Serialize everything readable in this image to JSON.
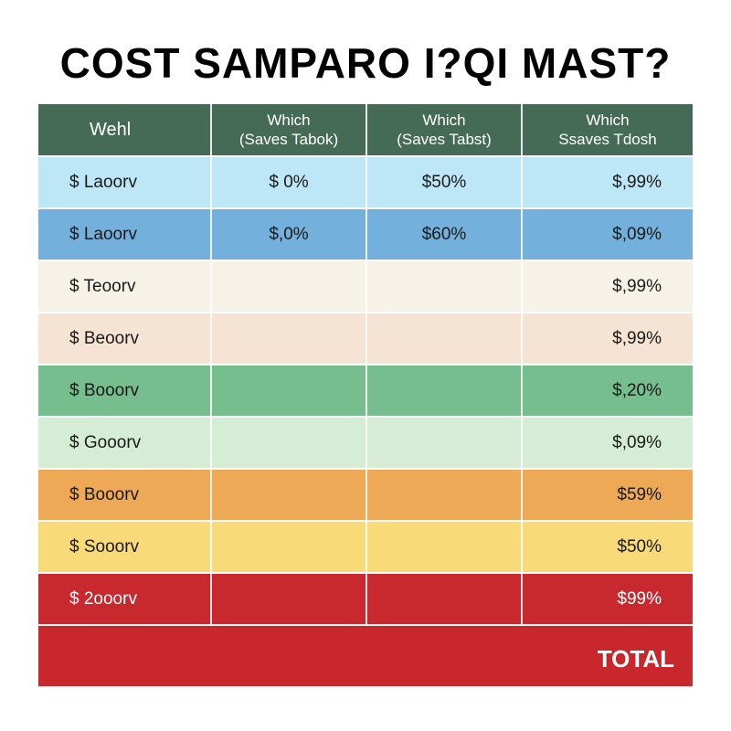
{
  "title": "COST SAMPARO I?QI MAST?",
  "header": {
    "background": "#456b57",
    "columns": [
      {
        "line1": "Wehl",
        "line2": ""
      },
      {
        "line1": "Which",
        "line2": "(Saves Tabok)"
      },
      {
        "line1": "Which",
        "line2": "(Saves Tabst)"
      },
      {
        "line1": "Which",
        "line2": "Ssaves Tdosh"
      }
    ]
  },
  "rows": [
    {
      "label": "$ Laoorv",
      "c1": "$ 0%",
      "c2": "$50%",
      "c3": "$,99%",
      "color": "#bde6f7",
      "text_color": "#1a1a1a"
    },
    {
      "label": "$ Laoorv",
      "c1": "$,0%",
      "c2": "$60%",
      "c3": "$,09%",
      "color": "#73b0dc",
      "text_color": "#1a1a1a"
    },
    {
      "label": "$ Teoorv",
      "c1": "",
      "c2": "",
      "c3": "$,99%",
      "color": "#f6f2e8",
      "text_color": "#1a1a1a"
    },
    {
      "label": "$ Beoorv",
      "c1": "",
      "c2": "",
      "c3": "$,99%",
      "color": "#f5e3d3",
      "text_color": "#1a1a1a"
    },
    {
      "label": "$ Booorv",
      "c1": "",
      "c2": "",
      "c3": "$,20%",
      "color": "#76be8d",
      "text_color": "#1a1a1a"
    },
    {
      "label": "$ Gooorv",
      "c1": "",
      "c2": "",
      "c3": "$,09%",
      "color": "#d4edd4",
      "text_color": "#1a1a1a"
    },
    {
      "label": "$ Booorv",
      "c1": "",
      "c2": "",
      "c3": "$59%",
      "color": "#eda955",
      "text_color": "#1a1a1a"
    },
    {
      "label": "$ Sooorv",
      "c1": "",
      "c2": "",
      "c3": "$50%",
      "color": "#f9da79",
      "text_color": "#1a1a1a"
    },
    {
      "label": "$ 2ooorv",
      "c1": "",
      "c2": "",
      "c3": "$99%",
      "color": "#c8292e",
      "text_color": "#ffffff"
    }
  ],
  "total": {
    "label": "TOTAL",
    "color": "#c8272c"
  }
}
